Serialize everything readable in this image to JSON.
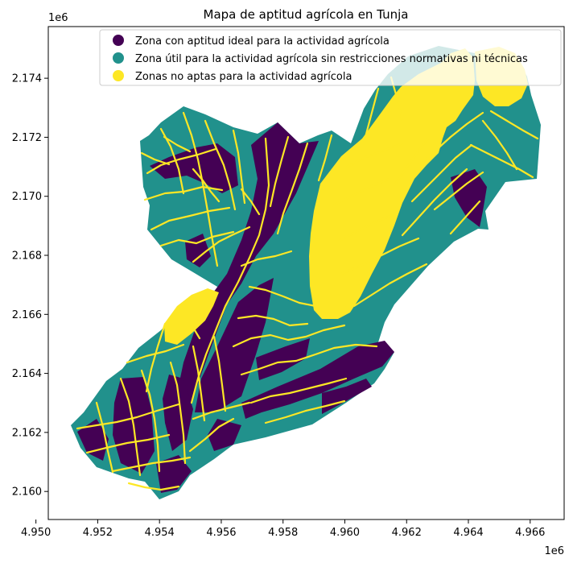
{
  "chart_data": {
    "type": "choropleth-map",
    "title": "Mapa de aptitud agrícola en Tunja",
    "xlim": [
      4.9504,
      4.9671
    ],
    "ylim": [
      2.15905,
      2.17575
    ],
    "x_offset_label": "1e6",
    "y_offset_label": "1e6",
    "x_ticks": [
      "4.950",
      "4.952",
      "4.954",
      "4.956",
      "4.958",
      "4.960",
      "4.962",
      "4.964",
      "4.966"
    ],
    "x_tick_values": [
      4.95,
      4.952,
      4.954,
      4.956,
      4.958,
      4.96,
      4.962,
      4.964,
      4.966
    ],
    "y_ticks": [
      "2.160",
      "2.162",
      "2.164",
      "2.166",
      "2.168",
      "2.170",
      "2.172",
      "2.174"
    ],
    "y_tick_values": [
      2.16,
      2.162,
      2.164,
      2.166,
      2.168,
      2.17,
      2.172,
      2.174
    ],
    "grid": false,
    "legend_position": "top-right",
    "legend": [
      {
        "label": "Zona con aptitud ideal para la actividad agrícola",
        "color": "#440154"
      },
      {
        "label": "Zona útil para la actividad agrícola sin restricciones normativas ni técnicas",
        "color": "#21918c"
      },
      {
        "label": "Zonas no aptas para la actividad agrícola",
        "color": "#fde725"
      }
    ]
  }
}
